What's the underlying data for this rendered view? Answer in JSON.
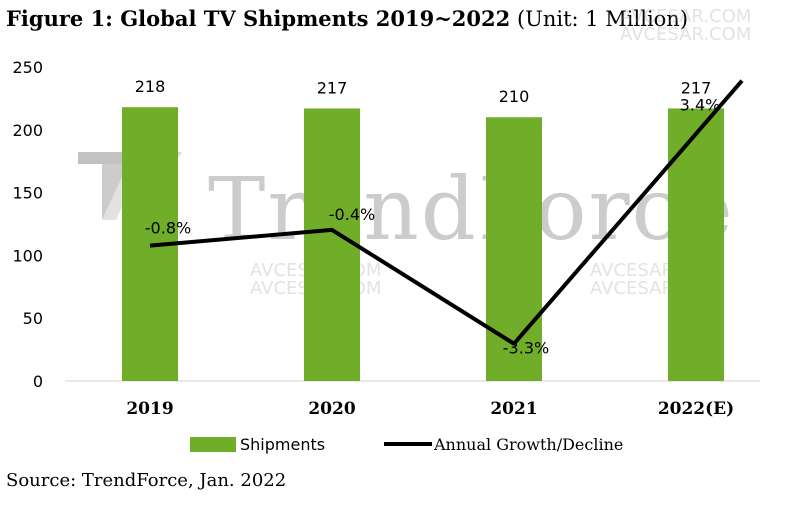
{
  "title": {
    "bold": "Figure 1: Global TV Shipments 2019~2022",
    "unit": "(Unit: 1 Million)"
  },
  "source": "Source: TrendForce, Jan. 2022",
  "watermark": {
    "brand": "TrendForce",
    "site": "AVCESAR.COM"
  },
  "colors": {
    "bar": "#70ad28",
    "line": "#000000",
    "watermark": "#7f7f7f"
  },
  "chart_data": {
    "type": "bar",
    "title": "Figure 1: Global TV Shipments 2019~2022 (Unit: 1 Million)",
    "categories": [
      "2019",
      "2020",
      "2021",
      "2022(E)"
    ],
    "series": [
      {
        "name": "Shipments",
        "type": "bar",
        "values": [
          218,
          217,
          210,
          217
        ],
        "labels": [
          "218",
          "217",
          "210",
          "217"
        ]
      },
      {
        "name": "Annual Growth/Decline",
        "type": "line",
        "values": [
          -0.8,
          -0.4,
          -3.3,
          3.4
        ],
        "labels": [
          "-0.8%",
          "-0.4%",
          "-3.3%",
          "3.4%"
        ]
      }
    ],
    "y_ticks": [
      "0",
      "50",
      "100",
      "150",
      "200",
      "250"
    ],
    "ylim": [
      0,
      250
    ],
    "secondary_ylim": [
      -4.25,
      3.75
    ],
    "grid": false,
    "legend": "bottom",
    "xlabel": "",
    "ylabel": ""
  }
}
